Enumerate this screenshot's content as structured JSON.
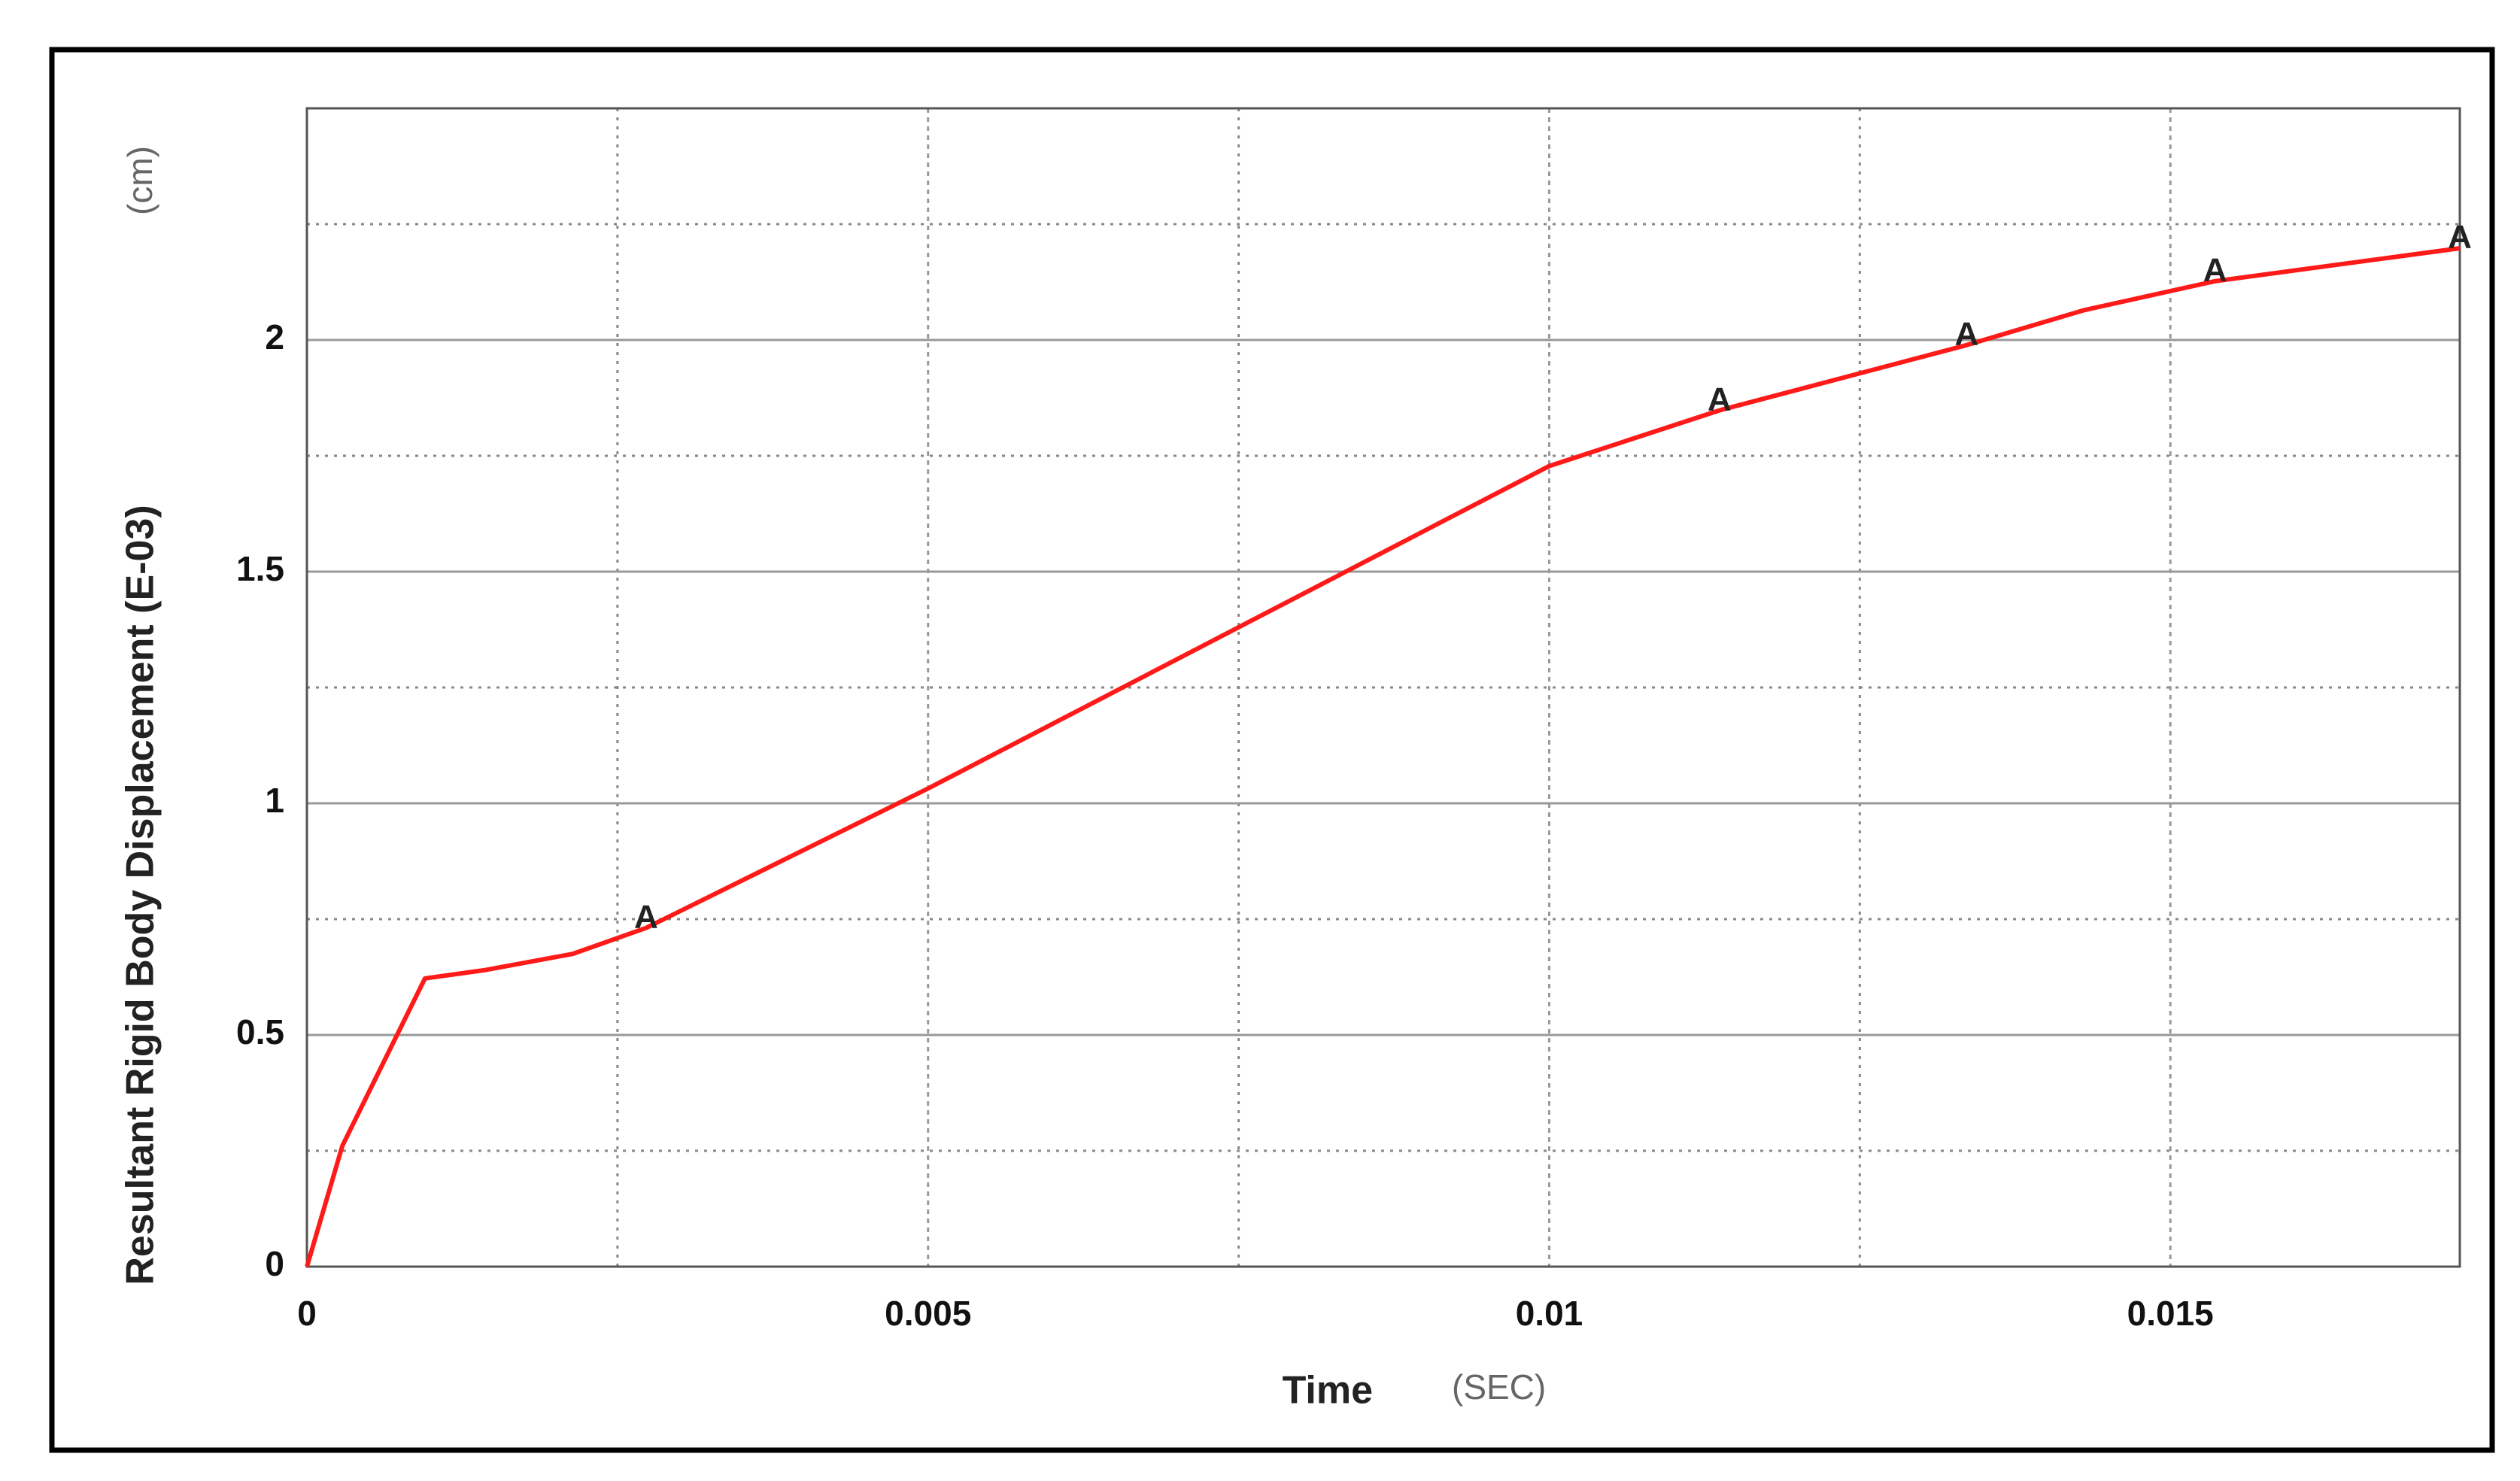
{
  "chart_data": {
    "type": "line",
    "x_label": "Time",
    "x_unit": "(SEC)",
    "y_label": "Resultant Rigid Body Displacement (E-03)",
    "y_unit": "(cm)",
    "x": [
      0,
      0.000286,
      0.00095,
      0.00143,
      0.00214,
      0.00273,
      0.005,
      0.01,
      0.01137,
      0.01336,
      0.0143,
      0.01536,
      0.01733
    ],
    "values": [
      0,
      0.261,
      0.622,
      0.64,
      0.675,
      0.731,
      1.032,
      1.728,
      1.848,
      1.989,
      2.064,
      2.127,
      2.198
    ],
    "color": "#ff1a1a",
    "marker_label": "A",
    "marker_indices": [
      5,
      8,
      9,
      11,
      12
    ],
    "xlim": [
      0,
      0.01733
    ],
    "ylim": [
      0,
      2.5
    ],
    "xticks": [
      0,
      0.005,
      0.01,
      0.015
    ],
    "yticks": [
      0,
      0.5,
      1,
      1.5,
      2
    ],
    "grid": true
  }
}
